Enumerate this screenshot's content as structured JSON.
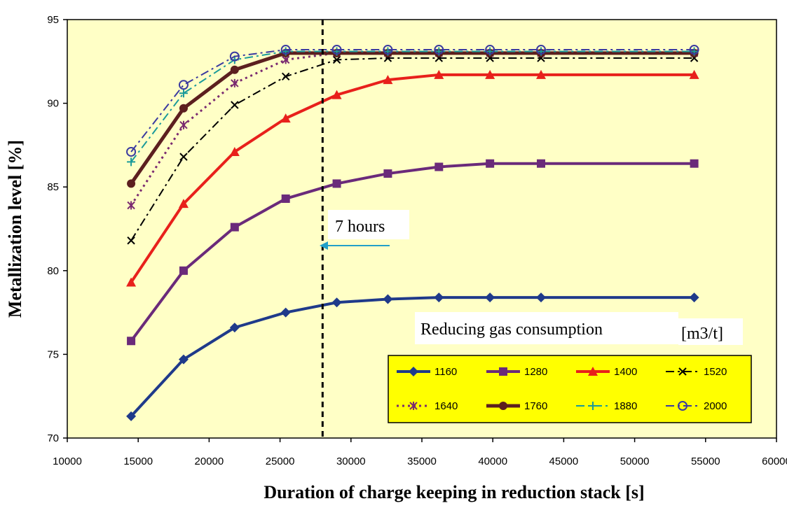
{
  "chart_data": {
    "type": "line",
    "xlabel": "Duration of charge keeping in reduction stack [s]",
    "ylabel": "Metallization level [%]",
    "xlim": [
      10000,
      60000
    ],
    "ylim": [
      70,
      95
    ],
    "xticks": [
      10000,
      15000,
      20000,
      25000,
      30000,
      35000,
      40000,
      45000,
      50000,
      55000,
      60000
    ],
    "yticks": [
      70,
      75,
      80,
      85,
      90,
      95
    ],
    "grid": false,
    "legend_title": "Reducing gas consumption",
    "legend_unit": "[m3/t]",
    "legend_position": "bottom-right",
    "series": [
      {
        "name": "1160",
        "color": "#1f3a8a",
        "marker": "diamond",
        "dash": "solid",
        "width": 4,
        "x": [
          14500,
          18200,
          21800,
          25400,
          29000,
          32600,
          36200,
          39800,
          43400,
          54200
        ],
        "y": [
          71.3,
          74.7,
          76.6,
          77.5,
          78.1,
          78.3,
          78.4,
          78.4,
          78.4,
          78.4
        ]
      },
      {
        "name": "1280",
        "color": "#6a2a7a",
        "marker": "square",
        "dash": "solid",
        "width": 4,
        "x": [
          14500,
          18200,
          21800,
          25400,
          29000,
          32600,
          36200,
          39800,
          43400,
          54200
        ],
        "y": [
          75.8,
          80.0,
          82.6,
          84.3,
          85.2,
          85.8,
          86.2,
          86.4,
          86.4,
          86.4
        ]
      },
      {
        "name": "1400",
        "color": "#e8201b",
        "marker": "triangle",
        "dash": "solid",
        "width": 4,
        "x": [
          14500,
          18200,
          21800,
          25400,
          29000,
          32600,
          36200,
          39800,
          43400,
          54200
        ],
        "y": [
          79.3,
          84.0,
          87.1,
          89.1,
          90.5,
          91.4,
          91.7,
          91.7,
          91.7,
          91.7
        ]
      },
      {
        "name": "1520",
        "color": "#000000",
        "marker": "x",
        "dash": "dashdot",
        "width": 2,
        "x": [
          14500,
          18200,
          21800,
          25400,
          29000,
          32600,
          36200,
          39800,
          43400,
          54200
        ],
        "y": [
          81.8,
          86.8,
          89.9,
          91.6,
          92.6,
          92.7,
          92.7,
          92.7,
          92.7,
          92.7
        ]
      },
      {
        "name": "1640",
        "color": "#7a2a70",
        "marker": "star",
        "dash": "dotted",
        "width": 3,
        "x": [
          14500,
          18200,
          21800,
          25400,
          29000,
          32600,
          36200,
          39800,
          43400,
          54200
        ],
        "y": [
          83.9,
          88.7,
          91.2,
          92.6,
          93.0,
          93.0,
          93.0,
          93.0,
          93.0,
          93.0
        ]
      },
      {
        "name": "1760",
        "color": "#5c1f1f",
        "marker": "circle",
        "dash": "solid",
        "width": 5,
        "x": [
          14500,
          18200,
          21800,
          25400,
          29000,
          32600,
          36200,
          39800,
          43400,
          54200
        ],
        "y": [
          85.2,
          89.7,
          92.0,
          93.0,
          93.0,
          93.0,
          93.0,
          93.0,
          93.0,
          93.0
        ]
      },
      {
        "name": "1880",
        "color": "#1a9a9a",
        "marker": "plus",
        "dash": "dashdot",
        "width": 2,
        "x": [
          14500,
          18200,
          21800,
          25400,
          29000,
          32600,
          36200,
          39800,
          43400,
          54200
        ],
        "y": [
          86.5,
          90.6,
          92.6,
          93.1,
          93.1,
          93.1,
          93.1,
          93.1,
          93.1,
          93.1
        ]
      },
      {
        "name": "2000",
        "color": "#3a3aa0",
        "marker": "hollow-circle",
        "dash": "dashdot",
        "width": 2,
        "x": [
          14500,
          18200,
          21800,
          25400,
          29000,
          32600,
          36200,
          39800,
          43400,
          54200
        ],
        "y": [
          87.1,
          91.1,
          92.8,
          93.2,
          93.2,
          93.2,
          93.2,
          93.2,
          93.2,
          93.2
        ]
      }
    ],
    "annotations": [
      {
        "text": "7 hours",
        "vline_x": 28000
      }
    ]
  }
}
